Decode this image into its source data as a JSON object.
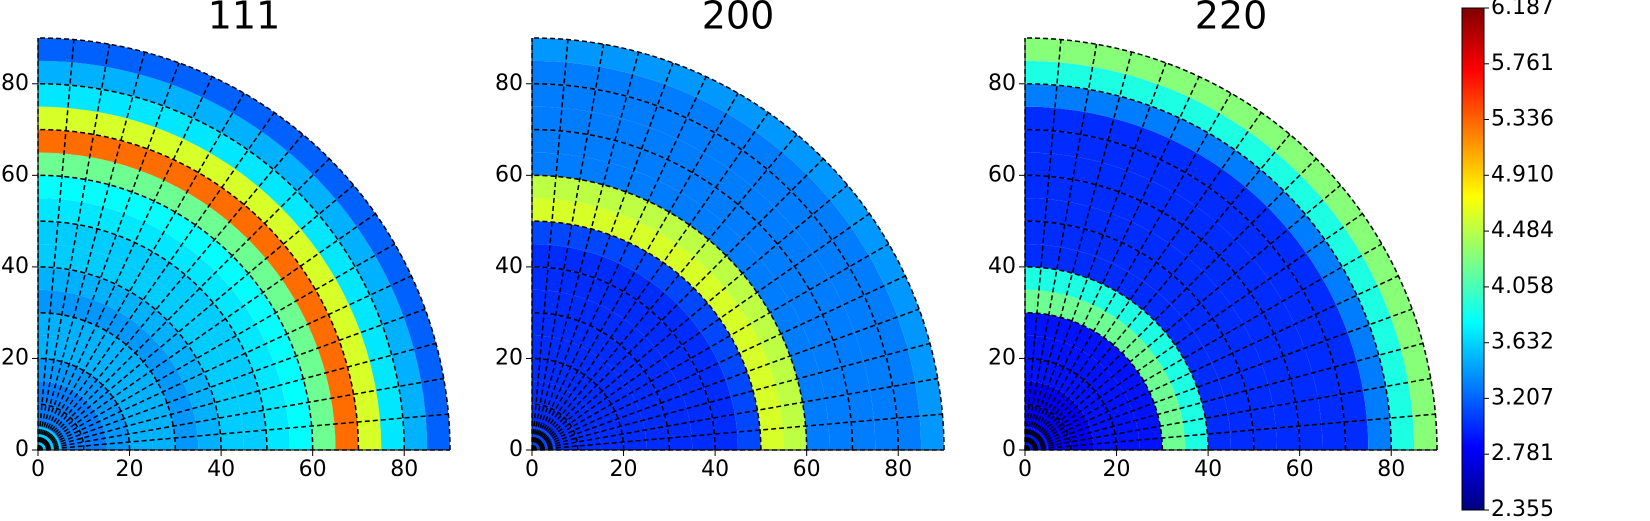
{
  "chart_data": [
    {
      "type": "polar_heatmap",
      "title": "111",
      "colormap": "jet",
      "clim": [
        2.355,
        6.187
      ],
      "r_edges": [
        0,
        5,
        10,
        15,
        20,
        25,
        30,
        35,
        40,
        45,
        50,
        55,
        60,
        65,
        70,
        75,
        80,
        85,
        90
      ],
      "values": [
        3.6,
        3.3,
        3.3,
        3.4,
        3.5,
        3.5,
        3.4,
        3.5,
        3.6,
        3.6,
        3.7,
        3.8,
        4.2,
        5.3,
        4.6,
        3.7,
        3.5,
        3.2
      ],
      "xlim": [
        0,
        90
      ],
      "ylim": [
        0,
        90
      ],
      "xticks": [
        0,
        20,
        40,
        60,
        80
      ],
      "yticks": [
        0,
        20,
        40,
        60,
        80
      ],
      "r_grid": [
        10,
        20,
        30,
        40,
        50,
        60,
        70,
        80,
        90
      ],
      "theta_grid": [
        0,
        5,
        10,
        15,
        20,
        25,
        30,
        35,
        40,
        45,
        50,
        55,
        60,
        65,
        70,
        75,
        80,
        85,
        90
      ]
    },
    {
      "type": "polar_heatmap",
      "title": "200",
      "colormap": "jet",
      "clim": [
        2.355,
        6.187
      ],
      "r_edges": [
        0,
        5,
        10,
        15,
        20,
        25,
        30,
        35,
        40,
        45,
        50,
        55,
        60,
        65,
        70,
        75,
        80,
        85,
        90
      ],
      "values": [
        3.1,
        3.0,
        3.0,
        3.0,
        3.0,
        3.0,
        3.0,
        3.0,
        3.0,
        3.1,
        4.6,
        4.5,
        3.3,
        3.3,
        3.3,
        3.3,
        3.3,
        3.4
      ],
      "xlim": [
        0,
        90
      ],
      "ylim": [
        0,
        90
      ],
      "xticks": [
        0,
        20,
        40,
        60,
        80
      ],
      "yticks": [
        0,
        20,
        40,
        60,
        80
      ],
      "r_grid": [
        10,
        20,
        30,
        40,
        50,
        60,
        70,
        80,
        90
      ],
      "theta_grid": [
        0,
        5,
        10,
        15,
        20,
        25,
        30,
        35,
        40,
        45,
        50,
        55,
        60,
        65,
        70,
        75,
        80,
        85,
        90
      ]
    },
    {
      "type": "polar_heatmap",
      "title": "220",
      "colormap": "jet",
      "clim": [
        2.355,
        6.187
      ],
      "r_edges": [
        0,
        5,
        10,
        15,
        20,
        25,
        30,
        35,
        40,
        45,
        50,
        55,
        60,
        65,
        70,
        75,
        80,
        85,
        90
      ],
      "values": [
        2.9,
        2.8,
        2.8,
        2.9,
        2.9,
        2.9,
        4.2,
        3.9,
        3.0,
        3.0,
        3.0,
        3.0,
        3.0,
        3.0,
        3.0,
        3.3,
        3.9,
        4.3
      ],
      "xlim": [
        0,
        90
      ],
      "ylim": [
        0,
        90
      ],
      "xticks": [
        0,
        20,
        40,
        60,
        80
      ],
      "yticks": [
        0,
        20,
        40,
        60,
        80
      ],
      "r_grid": [
        10,
        20,
        30,
        40,
        50,
        60,
        70,
        80,
        90
      ],
      "theta_grid": [
        0,
        5,
        10,
        15,
        20,
        25,
        30,
        35,
        40,
        45,
        50,
        55,
        60,
        65,
        70,
        75,
        80,
        85,
        90
      ]
    },
    {
      "type": "colorbar",
      "colormap": "jet",
      "clim": [
        2.355,
        6.187
      ],
      "ticks": [
        2.355,
        2.781,
        3.207,
        3.632,
        4.058,
        4.484,
        {
          "value": 4.91,
          "label": "4.910"
        },
        5.336,
        5.761,
        6.187
      ]
    }
  ]
}
